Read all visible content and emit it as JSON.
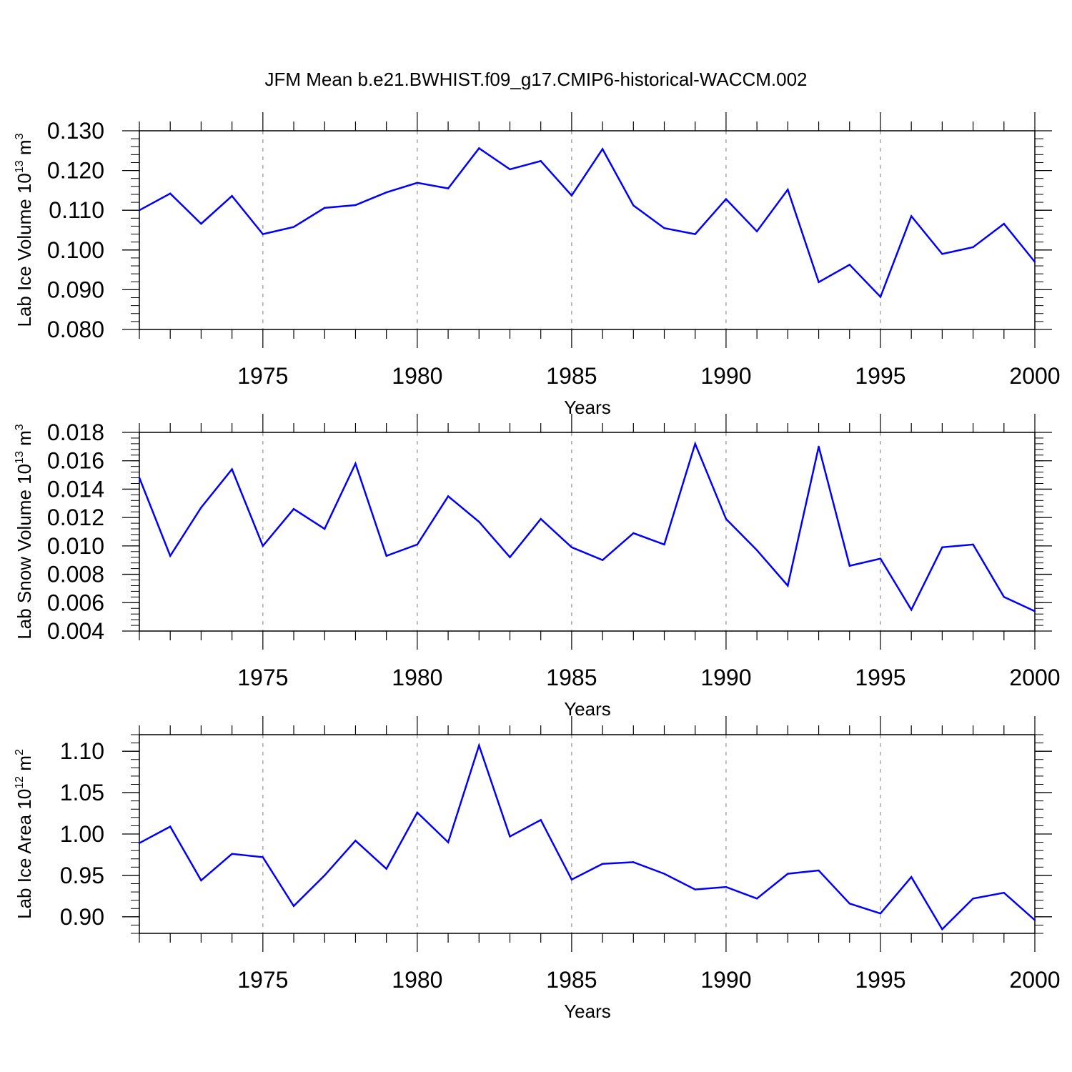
{
  "figure": {
    "title": "JFM Mean b.e21.BWHIST.f09_g17.CMIP6-historical-WACCM.002"
  },
  "style": {
    "line_color": "#0000ff",
    "axis_color": "#000000",
    "grid_color": "#9a9a9a"
  },
  "chart_data": [
    {
      "type": "line",
      "id": "ice-volume",
      "title": "",
      "xlabel": "Years",
      "ylabel": "Lab Ice Volume",
      "ylabel_power": "10",
      "ylabel_exp": "13",
      "ylabel_unit": "m",
      "ylabel_unit_exp": "3",
      "xlim": [
        1971,
        2000
      ],
      "ylim": [
        0.08,
        0.13
      ],
      "yticks": [
        0.08,
        0.09,
        0.1,
        0.11,
        0.12,
        0.13
      ],
      "ytick_labels": [
        "0.080",
        "0.090",
        "0.100",
        "0.110",
        "0.120",
        "0.130"
      ],
      "xticks": [
        1975,
        1980,
        1985,
        1990,
        1995,
        2000
      ],
      "xtick_labels": [
        "1975",
        "1980",
        "1985",
        "1990",
        "1995",
        "2000"
      ],
      "grid": "vertical dashed at major x ticks",
      "x": [
        1971,
        1972,
        1973,
        1974,
        1975,
        1976,
        1977,
        1978,
        1979,
        1980,
        1981,
        1982,
        1983,
        1984,
        1985,
        1986,
        1987,
        1988,
        1989,
        1990,
        1991,
        1992,
        1993,
        1994,
        1995,
        1996,
        1997,
        1998,
        1999,
        2000
      ],
      "series": [
        {
          "name": "Lab Ice Volume",
          "values": [
            0.11,
            0.1142,
            0.1066,
            0.1136,
            0.104,
            0.1058,
            0.1106,
            0.1113,
            0.1145,
            0.1169,
            0.1155,
            0.1256,
            0.1203,
            0.1224,
            0.1137,
            0.1254,
            0.1112,
            0.1055,
            0.104,
            0.1128,
            0.1047,
            0.1152,
            0.0919,
            0.0963,
            0.0882,
            0.1085,
            0.099,
            0.1007,
            0.1066,
            0.097
          ]
        }
      ]
    },
    {
      "type": "line",
      "id": "snow-volume",
      "title": "",
      "xlabel": "Years",
      "ylabel": "Lab Snow Volume",
      "ylabel_power": "10",
      "ylabel_exp": "13",
      "ylabel_unit": "m",
      "ylabel_unit_exp": "3",
      "xlim": [
        1971,
        2000
      ],
      "ylim": [
        0.004,
        0.018
      ],
      "yticks": [
        0.004,
        0.006,
        0.008,
        0.01,
        0.012,
        0.014,
        0.016,
        0.018
      ],
      "ytick_labels": [
        "0.004",
        "0.006",
        "0.008",
        "0.010",
        "0.012",
        "0.014",
        "0.016",
        "0.018"
      ],
      "xticks": [
        1975,
        1980,
        1985,
        1990,
        1995,
        2000
      ],
      "xtick_labels": [
        "1975",
        "1980",
        "1985",
        "1990",
        "1995",
        "2000"
      ],
      "grid": "vertical dashed at major x ticks",
      "x": [
        1971,
        1972,
        1973,
        1974,
        1975,
        1976,
        1977,
        1978,
        1979,
        1980,
        1981,
        1982,
        1983,
        1984,
        1985,
        1986,
        1987,
        1988,
        1989,
        1990,
        1991,
        1992,
        1993,
        1994,
        1995,
        1996,
        1997,
        1998,
        1999,
        2000
      ],
      "series": [
        {
          "name": "Lab Snow Volume",
          "values": [
            0.0148,
            0.0093,
            0.0127,
            0.0154,
            0.01,
            0.0126,
            0.0112,
            0.0158,
            0.0093,
            0.0101,
            0.0135,
            0.0117,
            0.0092,
            0.0119,
            0.0099,
            0.009,
            0.0109,
            0.0101,
            0.0172,
            0.0119,
            0.0097,
            0.0072,
            0.017,
            0.0086,
            0.0091,
            0.0055,
            0.0099,
            0.0101,
            0.0064,
            0.0054
          ]
        }
      ]
    },
    {
      "type": "line",
      "id": "ice-area",
      "title": "",
      "xlabel": "Years",
      "ylabel": "Lab Ice Area",
      "ylabel_power": "10",
      "ylabel_exp": "12",
      "ylabel_unit": "m",
      "ylabel_unit_exp": "2",
      "xlim": [
        1971,
        2000
      ],
      "ylim": [
        0.88,
        1.12
      ],
      "yticks": [
        0.9,
        0.95,
        1.0,
        1.05,
        1.1
      ],
      "ytick_labels": [
        "0.90",
        "0.95",
        "1.00",
        "1.05",
        "1.10"
      ],
      "xticks": [
        1975,
        1980,
        1985,
        1990,
        1995,
        2000
      ],
      "xtick_labels": [
        "1975",
        "1980",
        "1985",
        "1990",
        "1995",
        "2000"
      ],
      "grid": "vertical dashed at major x ticks",
      "x": [
        1971,
        1972,
        1973,
        1974,
        1975,
        1976,
        1977,
        1978,
        1979,
        1980,
        1981,
        1982,
        1983,
        1984,
        1985,
        1986,
        1987,
        1988,
        1989,
        1990,
        1991,
        1992,
        1993,
        1994,
        1995,
        1996,
        1997,
        1998,
        1999,
        2000
      ],
      "series": [
        {
          "name": "Lab Ice Area",
          "values": [
            0.989,
            1.009,
            0.944,
            0.976,
            0.972,
            0.913,
            0.95,
            0.992,
            0.958,
            1.026,
            0.99,
            1.107,
            0.997,
            1.017,
            0.945,
            0.964,
            0.966,
            0.952,
            0.933,
            0.936,
            0.922,
            0.952,
            0.956,
            0.916,
            0.904,
            0.948,
            0.885,
            0.922,
            0.929,
            0.896
          ]
        }
      ]
    }
  ]
}
